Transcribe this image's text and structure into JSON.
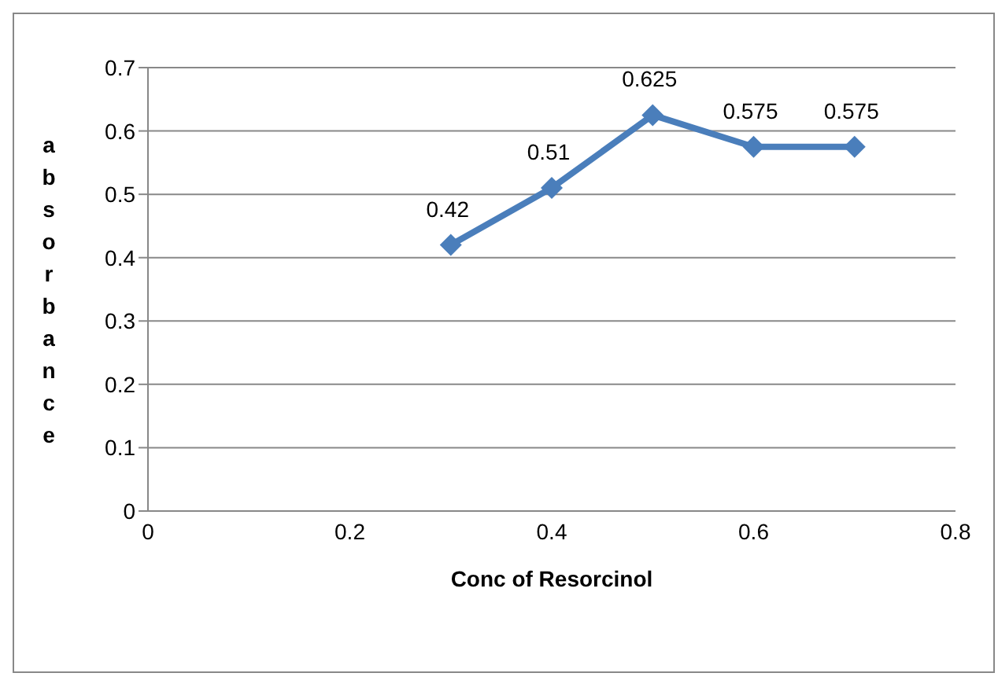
{
  "chart_data": {
    "type": "line",
    "xlabel": "Conc of Resorcinol",
    "ylabel": "absorbance",
    "x": [
      0.3,
      0.4,
      0.5,
      0.6,
      0.7
    ],
    "series": [
      {
        "color": "#4a7ebb",
        "values": [
          0.42,
          0.51,
          0.625,
          0.575,
          0.575
        ]
      }
    ],
    "xlim": [
      0,
      0.8
    ],
    "xticks": [
      0,
      0.2,
      0.4,
      0.6,
      0.8
    ],
    "ylim": [
      0,
      0.7
    ],
    "yticks": [
      0,
      0.1,
      0.2,
      0.3,
      0.4,
      0.5,
      0.6,
      0.7
    ],
    "grid": "y",
    "legend": false,
    "marker": "diamond",
    "line_style": "solid",
    "data_labels": true
  }
}
